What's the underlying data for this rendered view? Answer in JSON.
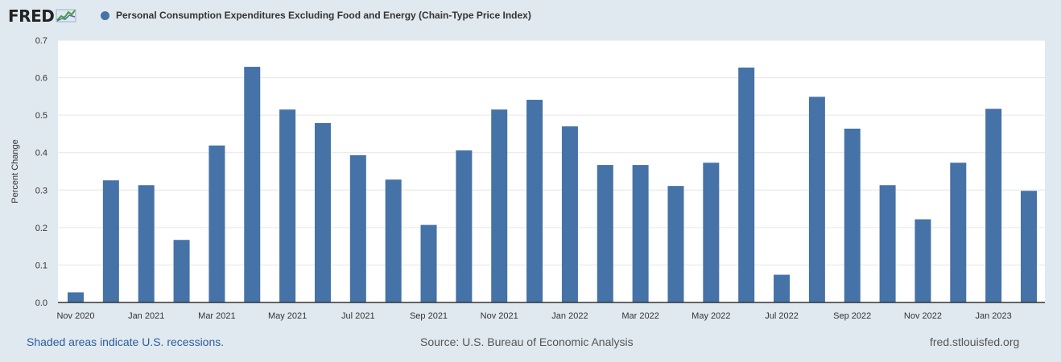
{
  "header": {
    "logo_text": "FRED",
    "legend_label": "Personal Consumption Expenditures Excluding Food and Energy (Chain-Type Price Index)",
    "series_color": "#4572a7"
  },
  "chart_data": {
    "type": "bar",
    "title": "Personal Consumption Expenditures Excluding Food and Energy (Chain-Type Price Index)",
    "xlabel": "",
    "ylabel": "Percent Change",
    "ylim": [
      0,
      0.7
    ],
    "yticks": [
      "0.0",
      "0.1",
      "0.2",
      "0.3",
      "0.4",
      "0.5",
      "0.6",
      "0.7"
    ],
    "grid": true,
    "categories": [
      "Nov 2020",
      "Dec 2020",
      "Jan 2021",
      "Feb 2021",
      "Mar 2021",
      "Apr 2021",
      "May 2021",
      "Jun 2021",
      "Jul 2021",
      "Aug 2021",
      "Sep 2021",
      "Oct 2021",
      "Nov 2021",
      "Dec 2021",
      "Jan 2022",
      "Feb 2022",
      "Mar 2022",
      "Apr 2022",
      "May 2022",
      "Jun 2022",
      "Jul 2022",
      "Aug 2022",
      "Sep 2022",
      "Oct 2022",
      "Nov 2022",
      "Dec 2022",
      "Jan 2023",
      "Feb 2023"
    ],
    "x_tick_labels": [
      "Nov 2020",
      "",
      "Jan 2021",
      "",
      "Mar 2021",
      "",
      "May 2021",
      "",
      "Jul 2021",
      "",
      "Sep 2021",
      "",
      "Nov 2021",
      "",
      "Jan 2022",
      "",
      "Mar 2022",
      "",
      "May 2022",
      "",
      "Jul 2022",
      "",
      "Sep 2022",
      "",
      "Nov 2022",
      "",
      "Jan 2023",
      ""
    ],
    "values": [
      0.027,
      0.326,
      0.313,
      0.167,
      0.419,
      0.629,
      0.515,
      0.479,
      0.393,
      0.328,
      0.207,
      0.406,
      0.515,
      0.541,
      0.47,
      0.367,
      0.367,
      0.311,
      0.373,
      0.627,
      0.074,
      0.549,
      0.464,
      0.313,
      0.222,
      0.373,
      0.517,
      0.298
    ]
  },
  "footer": {
    "recession_note": "Shaded areas indicate U.S. recessions.",
    "source": "Source: U.S. Bureau of Economic Analysis",
    "site": "fred.stlouisfed.org"
  }
}
